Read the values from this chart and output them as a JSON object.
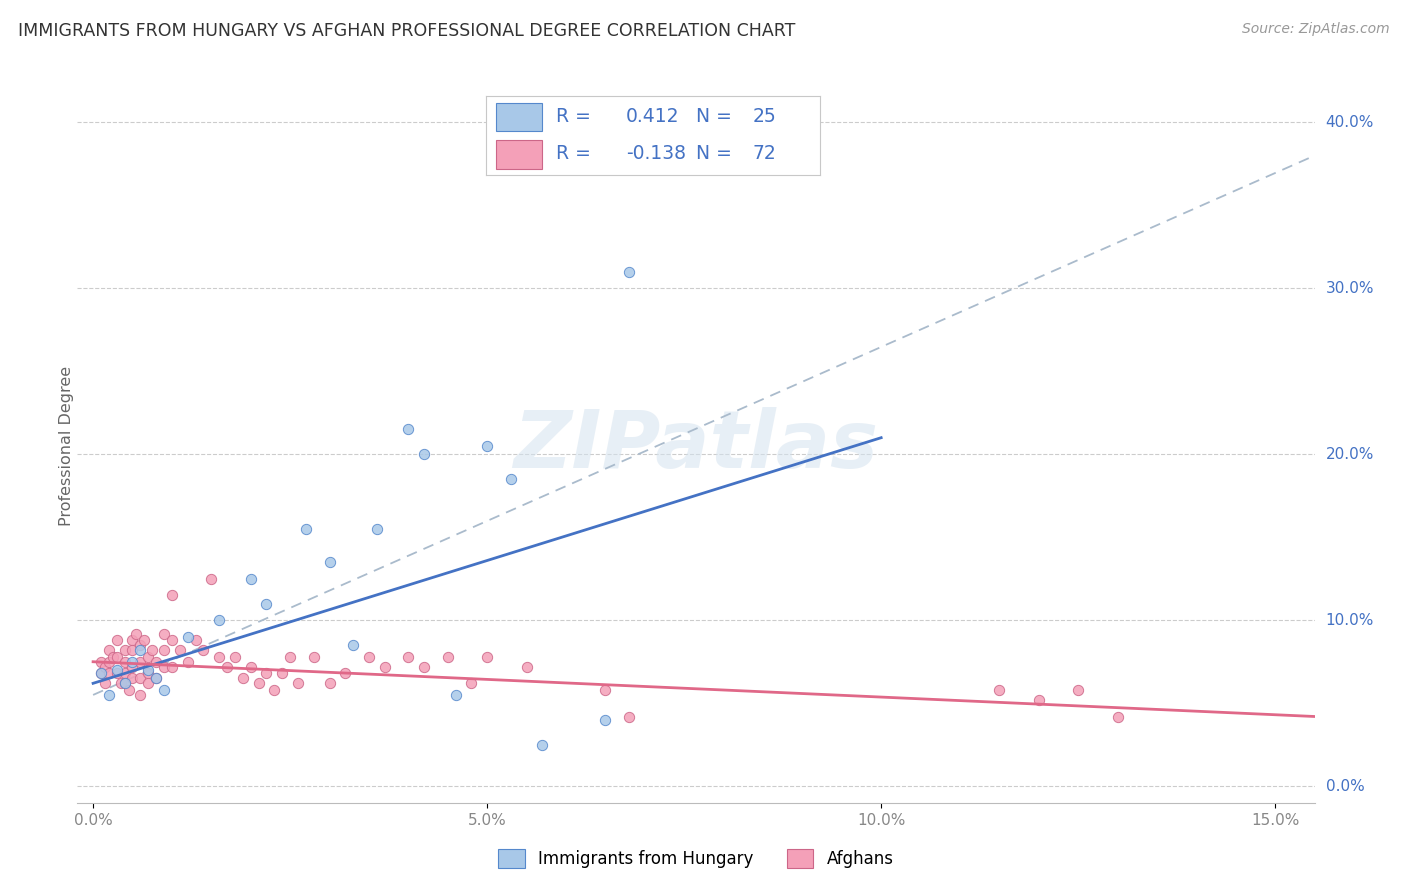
{
  "title": "IMMIGRANTS FROM HUNGARY VS AFGHAN PROFESSIONAL DEGREE CORRELATION CHART",
  "source": "Source: ZipAtlas.com",
  "ylabel": "Professional Degree",
  "xlabel_ticks": [
    "0.0%",
    "5.0%",
    "10.0%",
    "15.0%"
  ],
  "xlabel_vals": [
    0.0,
    0.05,
    0.1,
    0.15
  ],
  "ylabel_ticks": [
    "0.0%",
    "10.0%",
    "20.0%",
    "30.0%",
    "40.0%"
  ],
  "ylabel_vals": [
    0.0,
    0.1,
    0.2,
    0.3,
    0.4
  ],
  "xlim": [
    -0.002,
    0.155
  ],
  "ylim": [
    -0.01,
    0.42
  ],
  "watermark": "ZIPatlas",
  "hungary_color": "#a8c8e8",
  "afghan_color": "#f4a0b8",
  "hungary_edge_color": "#5588cc",
  "afghan_edge_color": "#cc6688",
  "hungary_line_color": "#4472c4",
  "afghan_line_color": "#e06888",
  "dashed_line_color": "#aabbcc",
  "title_color": "#333333",
  "axis_label_color": "#4472c4",
  "legend_text_color": "#4472c4",
  "hungary_scatter": [
    [
      0.001,
      0.068
    ],
    [
      0.002,
      0.055
    ],
    [
      0.003,
      0.07
    ],
    [
      0.004,
      0.062
    ],
    [
      0.005,
      0.075
    ],
    [
      0.006,
      0.082
    ],
    [
      0.007,
      0.07
    ],
    [
      0.008,
      0.065
    ],
    [
      0.009,
      0.058
    ],
    [
      0.012,
      0.09
    ],
    [
      0.016,
      0.1
    ],
    [
      0.02,
      0.125
    ],
    [
      0.022,
      0.11
    ],
    [
      0.027,
      0.155
    ],
    [
      0.03,
      0.135
    ],
    [
      0.033,
      0.085
    ],
    [
      0.036,
      0.155
    ],
    [
      0.04,
      0.215
    ],
    [
      0.042,
      0.2
    ],
    [
      0.046,
      0.055
    ],
    [
      0.05,
      0.205
    ],
    [
      0.053,
      0.185
    ],
    [
      0.057,
      0.025
    ],
    [
      0.065,
      0.04
    ],
    [
      0.068,
      0.31
    ]
  ],
  "afghan_scatter": [
    [
      0.001,
      0.075
    ],
    [
      0.001,
      0.068
    ],
    [
      0.0015,
      0.072
    ],
    [
      0.0015,
      0.062
    ],
    [
      0.002,
      0.082
    ],
    [
      0.002,
      0.075
    ],
    [
      0.002,
      0.068
    ],
    [
      0.0025,
      0.078
    ],
    [
      0.003,
      0.088
    ],
    [
      0.003,
      0.078
    ],
    [
      0.003,
      0.068
    ],
    [
      0.0035,
      0.062
    ],
    [
      0.004,
      0.082
    ],
    [
      0.004,
      0.075
    ],
    [
      0.004,
      0.068
    ],
    [
      0.004,
      0.062
    ],
    [
      0.0045,
      0.058
    ],
    [
      0.005,
      0.088
    ],
    [
      0.005,
      0.082
    ],
    [
      0.005,
      0.072
    ],
    [
      0.005,
      0.065
    ],
    [
      0.0055,
      0.092
    ],
    [
      0.006,
      0.085
    ],
    [
      0.006,
      0.075
    ],
    [
      0.006,
      0.065
    ],
    [
      0.006,
      0.055
    ],
    [
      0.0065,
      0.088
    ],
    [
      0.007,
      0.078
    ],
    [
      0.007,
      0.068
    ],
    [
      0.007,
      0.062
    ],
    [
      0.0075,
      0.082
    ],
    [
      0.008,
      0.075
    ],
    [
      0.008,
      0.065
    ],
    [
      0.009,
      0.092
    ],
    [
      0.009,
      0.082
    ],
    [
      0.009,
      0.072
    ],
    [
      0.01,
      0.115
    ],
    [
      0.01,
      0.088
    ],
    [
      0.01,
      0.072
    ],
    [
      0.011,
      0.082
    ],
    [
      0.012,
      0.075
    ],
    [
      0.013,
      0.088
    ],
    [
      0.014,
      0.082
    ],
    [
      0.015,
      0.125
    ],
    [
      0.016,
      0.078
    ],
    [
      0.017,
      0.072
    ],
    [
      0.018,
      0.078
    ],
    [
      0.019,
      0.065
    ],
    [
      0.02,
      0.072
    ],
    [
      0.021,
      0.062
    ],
    [
      0.022,
      0.068
    ],
    [
      0.023,
      0.058
    ],
    [
      0.024,
      0.068
    ],
    [
      0.025,
      0.078
    ],
    [
      0.026,
      0.062
    ],
    [
      0.028,
      0.078
    ],
    [
      0.03,
      0.062
    ],
    [
      0.032,
      0.068
    ],
    [
      0.035,
      0.078
    ],
    [
      0.037,
      0.072
    ],
    [
      0.04,
      0.078
    ],
    [
      0.042,
      0.072
    ],
    [
      0.045,
      0.078
    ],
    [
      0.048,
      0.062
    ],
    [
      0.05,
      0.078
    ],
    [
      0.055,
      0.072
    ],
    [
      0.065,
      0.058
    ],
    [
      0.068,
      0.042
    ],
    [
      0.115,
      0.058
    ],
    [
      0.12,
      0.052
    ],
    [
      0.125,
      0.058
    ],
    [
      0.13,
      0.042
    ]
  ],
  "hungary_trendline": [
    [
      0.0,
      0.062
    ],
    [
      0.1,
      0.21
    ]
  ],
  "afghan_trendline": [
    [
      0.0,
      0.075
    ],
    [
      0.155,
      0.042
    ]
  ],
  "dashed_trendline": [
    [
      0.0,
      0.055
    ],
    [
      0.155,
      0.38
    ]
  ],
  "background_color": "#ffffff",
  "grid_color": "#cccccc"
}
